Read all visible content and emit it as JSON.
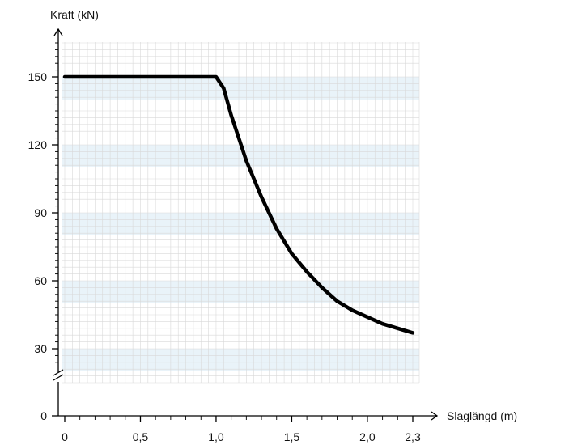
{
  "chart_data": {
    "type": "line",
    "title": "",
    "xlabel": "Slaglängd (m)",
    "ylabel": "Kraft (kN)",
    "xlim": [
      0,
      2.3
    ],
    "ylim": [
      0,
      150
    ],
    "axis_break_y": true,
    "grid": true,
    "x_tick_labels": [
      "0",
      "0,5",
      "1,0",
      "1,5",
      "2,0",
      "2,3"
    ],
    "x_tick_values": [
      0,
      0.5,
      1.0,
      1.5,
      2.0,
      2.3
    ],
    "y_tick_labels": [
      "0",
      "30",
      "60",
      "90",
      "120",
      "150"
    ],
    "y_tick_values": [
      0,
      30,
      60,
      90,
      120,
      150
    ],
    "series": [
      {
        "x": [
          0,
          0.1,
          0.2,
          0.3,
          0.4,
          0.5,
          0.6,
          0.7,
          0.8,
          0.9,
          1.0,
          1.05,
          1.1,
          1.2,
          1.3,
          1.4,
          1.5,
          1.6,
          1.7,
          1.8,
          1.9,
          2.0,
          2.1,
          2.2,
          2.3
        ],
        "values": [
          150,
          150,
          150,
          150,
          150,
          150,
          150,
          150,
          150,
          150,
          150,
          145,
          133,
          113,
          97,
          83,
          72,
          64,
          57,
          51,
          47,
          44,
          41,
          39,
          37
        ]
      }
    ],
    "colors": {
      "line": "#000000",
      "grid": "#d9d9d9",
      "band": "#e9f3f9",
      "axis": "#000000"
    }
  }
}
